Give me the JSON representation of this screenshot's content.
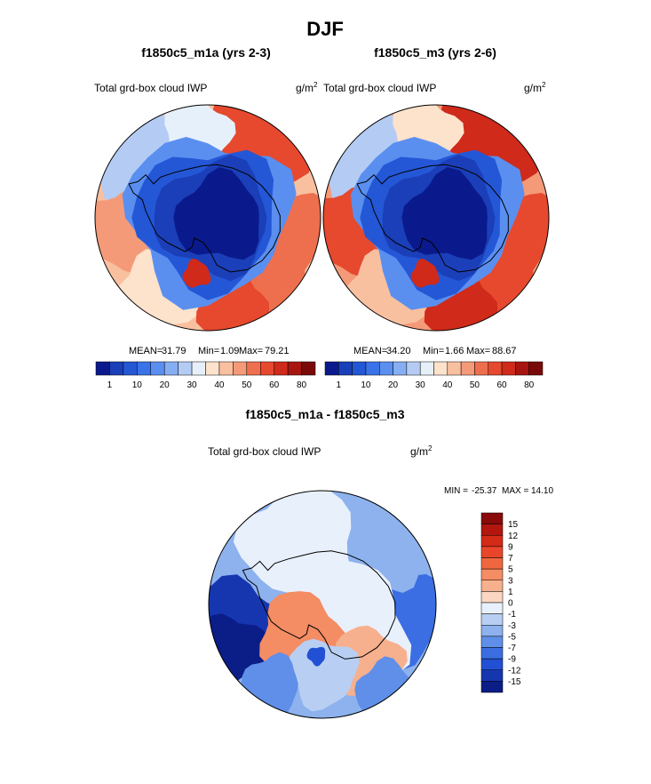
{
  "figure": {
    "title": "DJF"
  },
  "chart_data": [
    {
      "type": "heatmap",
      "projection": "south-polar-stereographic",
      "title": "f1850c5_m1a (yrs 2-3)",
      "variable": "Total grd-box cloud IWP",
      "units_base": "g/m",
      "units_exp": "2",
      "stats": {
        "mean_label": "MEAN=",
        "mean": "31.79",
        "min_label": "Min=",
        "min": "1.09",
        "max_label": "Max=",
        "max": "79.21"
      },
      "colorbar": {
        "orientation": "horizontal",
        "levels": [
          1,
          5,
          10,
          15,
          20,
          25,
          30,
          35,
          40,
          45,
          50,
          55,
          60,
          70,
          80
        ],
        "tick_labels": [
          "1",
          "10",
          "20",
          "30",
          "40",
          "50",
          "60",
          "80"
        ],
        "colors": [
          "#0a1a8c",
          "#1b3fb8",
          "#2457d6",
          "#3a72e8",
          "#5a8ff0",
          "#86aef2",
          "#b4ccf4",
          "#e6f0fb",
          "#fde2cc",
          "#f9c0a0",
          "#f49a78",
          "#ee6f4e",
          "#e6492e",
          "#cf2a1a",
          "#a81510",
          "#7a0a0a"
        ]
      }
    },
    {
      "type": "heatmap",
      "projection": "south-polar-stereographic",
      "title": "f1850c5_m3 (yrs 2-6)",
      "variable": "Total grd-box cloud IWP",
      "units_base": "g/m",
      "units_exp": "2",
      "stats": {
        "mean_label": "MEAN=",
        "mean": "34.20",
        "min_label": "Min=",
        "min": "1.66",
        "max_label": "Max=",
        "max": "88.67"
      },
      "colorbar": {
        "orientation": "horizontal",
        "levels": [
          1,
          5,
          10,
          15,
          20,
          25,
          30,
          35,
          40,
          45,
          50,
          55,
          60,
          70,
          80
        ],
        "tick_labels": [
          "1",
          "10",
          "20",
          "30",
          "40",
          "50",
          "60",
          "80"
        ],
        "colors": [
          "#0a1a8c",
          "#1b3fb8",
          "#2457d6",
          "#3a72e8",
          "#5a8ff0",
          "#86aef2",
          "#b4ccf4",
          "#e6f0fb",
          "#fde2cc",
          "#f9c0a0",
          "#f49a78",
          "#ee6f4e",
          "#e6492e",
          "#cf2a1a",
          "#a81510",
          "#7a0a0a"
        ]
      }
    },
    {
      "type": "heatmap",
      "projection": "south-polar-stereographic",
      "title": "f1850c5_m1a - f1850c5_m3",
      "variable": "Total grd-box cloud IWP",
      "units_base": "g/m",
      "units_exp": "2",
      "stats": {
        "min_label": "MIN =",
        "min": "-25.37",
        "max_label": "MAX =",
        "max": "14.10"
      },
      "colorbar": {
        "orientation": "vertical",
        "levels": [
          15,
          12,
          9,
          7,
          5,
          3,
          1,
          0,
          -1,
          -3,
          -5,
          -7,
          -9,
          -12,
          -15
        ],
        "tick_labels": [
          "15",
          "12",
          "9",
          "7",
          "5",
          "3",
          "1",
          "0",
          "-1",
          "-3",
          "-5",
          "-7",
          "-9",
          "-12",
          "-15"
        ],
        "colors": [
          "#8a0a0a",
          "#b3160f",
          "#d42a18",
          "#e8452a",
          "#f0673f",
          "#f48c64",
          "#f7b08e",
          "#fbd6c2",
          "#e8f0fb",
          "#b8cff3",
          "#8db2ee",
          "#5f8fe8",
          "#3a6ee2",
          "#2250d4",
          "#1636b0",
          "#0b1d86"
        ]
      }
    }
  ]
}
